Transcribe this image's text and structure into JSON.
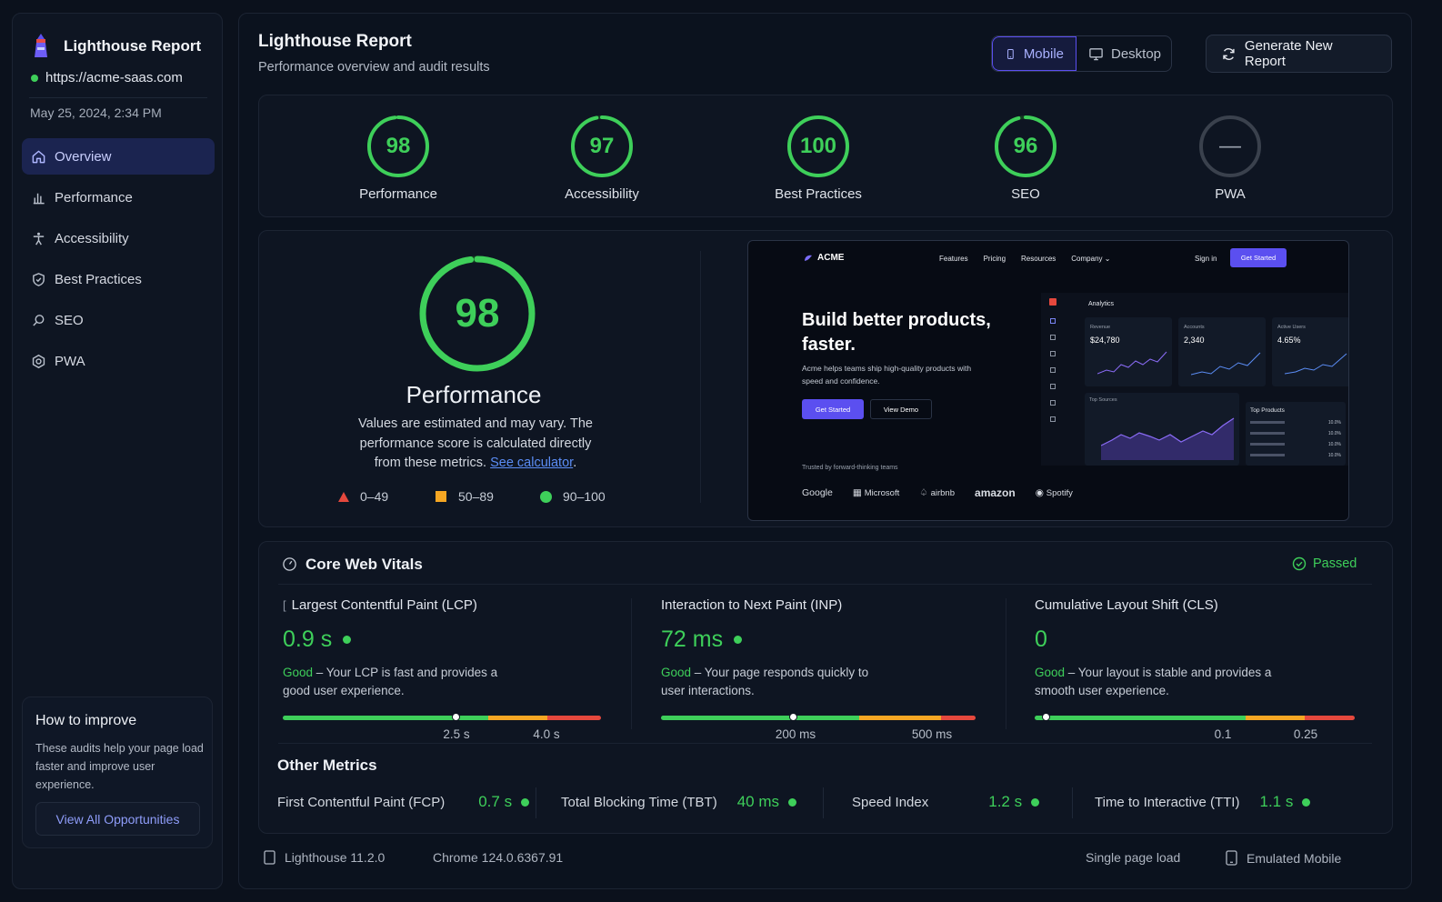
{
  "sidebar": {
    "app_title": "Lighthouse Report",
    "url": "https://acme-saas.com",
    "timestamp": "May 25, 2024, 2:34 PM",
    "nav": [
      {
        "label": "Overview",
        "icon": "home-icon",
        "active": true
      },
      {
        "label": "Performance",
        "icon": "bar-chart-icon"
      },
      {
        "label": "Accessibility",
        "icon": "accessibility-icon"
      },
      {
        "label": "Best Practices",
        "icon": "shield-icon"
      },
      {
        "label": "SEO",
        "icon": "search-icon"
      },
      {
        "label": "PWA",
        "icon": "pwa-icon"
      }
    ],
    "improve": {
      "title": "How to improve",
      "text": "These audits help your page load faster and improve user experience.",
      "button": "View All Opportunities"
    }
  },
  "header": {
    "title": "Lighthouse Report",
    "subtitle": "Performance overview and audit results",
    "device_mobile": "Mobile",
    "device_desktop": "Desktop",
    "generate_button": "Generate New Report"
  },
  "scores": [
    {
      "label": "Performance",
      "value": "98",
      "fraction": 0.98
    },
    {
      "label": "Accessibility",
      "value": "97",
      "fraction": 0.97
    },
    {
      "label": "Best Practices",
      "value": "100",
      "fraction": 1.0
    },
    {
      "label": "SEO",
      "value": "96",
      "fraction": 0.96
    },
    {
      "label": "PWA",
      "value": "—",
      "fraction": 0
    }
  ],
  "performance": {
    "score": "98",
    "fraction": 0.98,
    "title": "Performance",
    "desc_before": "Values are estimated and may vary. The performance score is calculated directly from these metrics. ",
    "desc_link": "See calculator",
    "desc_after": ".",
    "legend": [
      {
        "label": "0–49",
        "shape": "triangle",
        "color": "#e5483d"
      },
      {
        "label": "50–89",
        "shape": "square",
        "color": "#f5a623"
      },
      {
        "label": "90–100",
        "shape": "circle",
        "color": "#3ecf5a"
      }
    ]
  },
  "preview": {
    "brand": "ACME",
    "nav": [
      "Features",
      "Pricing",
      "Resources",
      "Company"
    ],
    "sign_in": "Sign in",
    "get_started": "Get Started",
    "headline": "Build better products, faster.",
    "subtext": "Acme helps teams ship high-quality products with speed and confidence.",
    "cta_primary": "Get Started",
    "cta_secondary": "View Demo",
    "trusted": "Trusted by forward-thinking teams",
    "logos": [
      "Google",
      "Microsoft",
      "airbnb",
      "amazon",
      "Spotify"
    ],
    "dashboard": {
      "title": "Analytics",
      "cards": [
        {
          "label": "Revenue",
          "value": "$24,780"
        },
        {
          "label": "Accounts",
          "value": "2,340"
        },
        {
          "label": "Active Users",
          "value": "4.65%"
        }
      ],
      "chart_title": "Top Sources",
      "products_title": "Top Products",
      "products": [
        "10.0%",
        "10.0%",
        "10.0%",
        "10.0%"
      ]
    }
  },
  "vitals": {
    "title": "Core Web Vitals",
    "status": "Passed",
    "items": [
      {
        "title": "Largest Contentful Paint (LCP)",
        "prefix": "[",
        "value": "0.9 s",
        "rating": "Good",
        "desc": " – Your LCP is fast and provides a good user experience.",
        "ticks": [
          "2.5 s",
          "4.0 s"
        ],
        "position": 0.545
      },
      {
        "title": "Interaction to Next Paint (INP)",
        "prefix": "",
        "value": "72 ms",
        "rating": "Good",
        "desc": " – Your page responds quickly to user interactions.",
        "ticks": [
          "200 ms",
          "500 ms"
        ],
        "position": 0.42
      },
      {
        "title": "Cumulative Layout Shift (CLS)",
        "prefix": "",
        "value": "0",
        "rating": "Good",
        "desc": " – Your layout is stable and provides a smooth user experience.",
        "ticks": [
          "0.1",
          "0.25"
        ],
        "position": 0.035
      }
    ]
  },
  "other_metrics": {
    "title": "Other Metrics",
    "items": [
      {
        "label": "First Contentful Paint (FCP)",
        "value": "0.7 s"
      },
      {
        "label": "Total Blocking Time (TBT)",
        "value": "40 ms"
      },
      {
        "label": "Speed Index",
        "value": "1.2 s"
      },
      {
        "label": "Time to Interactive (TTI)",
        "value": "1.1 s"
      }
    ]
  },
  "footer": {
    "lighthouse_version": "Lighthouse 11.2.0",
    "chrome_version": "Chrome 124.0.6367.91",
    "load_type": "Single page load",
    "device": "Emulated Mobile"
  },
  "colors": {
    "good": "#3ecf5a",
    "average": "#f5a623",
    "poor": "#e5483d",
    "accent": "#6d5df6"
  }
}
